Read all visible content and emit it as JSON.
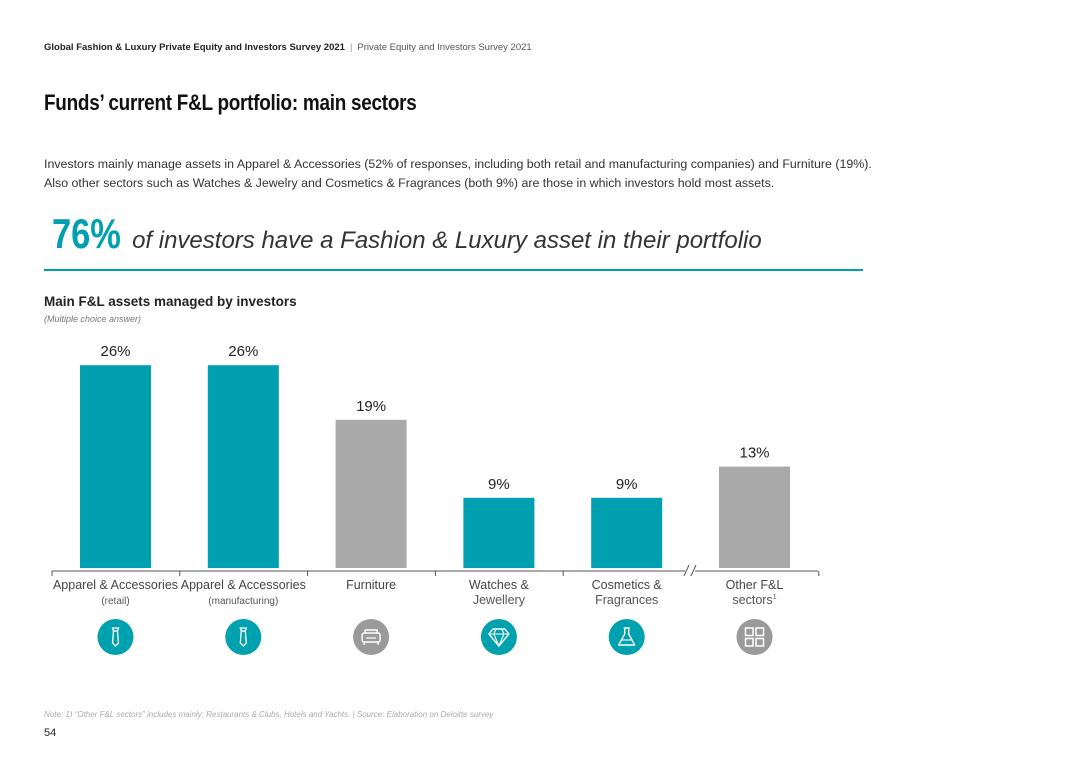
{
  "header": {
    "report_title": "Global Fashion & Luxury Private Equity and Investors Survey 2021",
    "separator": "|",
    "subtitle": "Private Equity and Investors Survey 2021"
  },
  "page": {
    "title": "Funds’ current F&L portfolio: main sectors",
    "intro": "Investors mainly manage assets in Apparel & Accessories (52% of responses, including both retail and manufacturing companies) and Furniture (19%). Also other sectors such as Watches & Jewelry and  Cosmetics & Fragrances (both 9%) are those in which investors hold most assets.",
    "highlight_value": "76%",
    "highlight_text": "of investors have a Fashion & Luxury asset in their portfolio",
    "note": "Note: 1) “Other F&L sectors” includes mainly: Restaurants & Clubs, Hotels and Yachts. | Source: Elaboration on Deloitte survey",
    "page_number": "54"
  },
  "colors": {
    "teal": "#00a0b0",
    "grey": "#a9a9aa",
    "icon_teal": "#00a1ae",
    "icon_grey": "#9a9a9a",
    "divider": "#00a0b0",
    "highlight": "#00a0b0"
  },
  "chart_data": {
    "type": "bar",
    "title": "Main F&L assets managed by investors",
    "subtitle": "(Multiple choice answer)",
    "unit": "%",
    "ylim": [
      0,
      30
    ],
    "categories": [
      {
        "line1": "Apparel & Accessories",
        "line2": "(retail)",
        "value": 26,
        "label": "26%",
        "color": "teal",
        "icon": "tie-icon"
      },
      {
        "line1": "Apparel & Accessories",
        "line2": "(manufacturing)",
        "value": 26,
        "label": "26%",
        "color": "teal",
        "icon": "tie-icon"
      },
      {
        "line1": "Furniture",
        "line2": "",
        "value": 19,
        "label": "19%",
        "color": "grey",
        "icon": "sofa-icon"
      },
      {
        "line1": "Watches &",
        "line2": "Jewellery",
        "value": 9,
        "label": "9%",
        "color": "teal",
        "icon": "diamond-icon"
      },
      {
        "line1": "Cosmetics &",
        "line2": "Fragrances",
        "value": 9,
        "label": "9%",
        "color": "teal",
        "icon": "flask-icon"
      },
      {
        "line1": "Other F&L",
        "line2": "sectors",
        "sup": "1",
        "value": 13,
        "label": "13%",
        "color": "grey",
        "icon": "grid-icon"
      }
    ],
    "axis_break": true
  }
}
